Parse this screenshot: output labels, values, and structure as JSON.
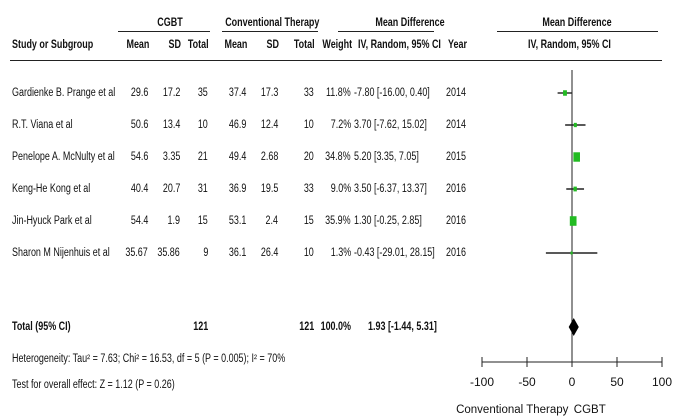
{
  "header": {
    "group_exp": "CGBT",
    "group_ctrl": "Conventional Therapy",
    "md_left": "Mean Difference",
    "md_right": "Mean Difference",
    "study_col": "Study or Subgroup",
    "mean": "Mean",
    "sd": "SD",
    "total": "Total",
    "weight": "Weight",
    "method": "IV, Random, 95% CI",
    "year": "Year",
    "method_right": "IV, Random, 95% CI"
  },
  "studies": [
    {
      "name": "Gardienke B. Prange et al",
      "exp_mean": "29.6",
      "exp_sd": "17.2",
      "exp_total": "35",
      "ctrl_mean": "37.4",
      "ctrl_sd": "17.3",
      "ctrl_total": "33",
      "weight": "11.8%",
      "ci_text": "-7.80 [-16.00, 0.40]",
      "year": "2014"
    },
    {
      "name": "R.T. Viana et al",
      "exp_mean": "50.6",
      "exp_sd": "13.4",
      "exp_total": "10",
      "ctrl_mean": "46.9",
      "ctrl_sd": "12.4",
      "ctrl_total": "10",
      "weight": "7.2%",
      "ci_text": "3.70 [-7.62, 15.02]",
      "year": "2014"
    },
    {
      "name": "Penelope A. McNulty et al",
      "exp_mean": "54.6",
      "exp_sd": "3.35",
      "exp_total": "21",
      "ctrl_mean": "49.4",
      "ctrl_sd": "2.68",
      "ctrl_total": "20",
      "weight": "34.8%",
      "ci_text": "5.20 [3.35, 7.05]",
      "year": "2015"
    },
    {
      "name": "Keng-He Kong et al",
      "exp_mean": "40.4",
      "exp_sd": "20.7",
      "exp_total": "31",
      "ctrl_mean": "36.9",
      "ctrl_sd": "19.5",
      "ctrl_total": "33",
      "weight": "9.0%",
      "ci_text": "3.50 [-6.37, 13.37]",
      "year": "2016"
    },
    {
      "name": "Jin-Hyuck Park et al",
      "exp_mean": "54.4",
      "exp_sd": "1.9",
      "exp_total": "15",
      "ctrl_mean": "53.1",
      "ctrl_sd": "2.4",
      "ctrl_total": "15",
      "weight": "35.9%",
      "ci_text": "1.30 [-0.25, 2.85]",
      "year": "2016"
    },
    {
      "name": "Sharon M Nijenhuis et al",
      "exp_mean": "35.67",
      "exp_sd": "35.86",
      "exp_total": "9",
      "ctrl_mean": "36.1",
      "ctrl_sd": "26.4",
      "ctrl_total": "10",
      "weight": "1.3%",
      "ci_text": "-0.43 [-29.01, 28.15]",
      "year": "2016"
    }
  ],
  "total": {
    "label": "Total (95% CI)",
    "exp_total": "121",
    "ctrl_total": "121",
    "weight": "100.0%",
    "ci_text": "1.93 [-1.44, 5.31]"
  },
  "footer": {
    "heterogeneity": "Heterogeneity: Tau² = 7.63; Chi² = 16.53, df = 5 (P = 0.005); I² = 70%",
    "overall": "Test for overall effect: Z = 1.12 (P = 0.26)",
    "favours_left": "Conventional Therapy",
    "favours_right": "CGBT"
  },
  "chart_data": {
    "type": "forest",
    "xlim": [
      -100,
      100
    ],
    "xticks": [
      -100,
      -50,
      0,
      50,
      100
    ],
    "tick_labels": [
      "-100",
      "-50",
      "0",
      "50",
      "100"
    ],
    "null_value": 0,
    "marker_color": "#22bb22",
    "series": [
      {
        "study": "Gardienke B. Prange et al",
        "estimate": -7.8,
        "lower": -16.0,
        "upper": 0.4,
        "weight": 11.8
      },
      {
        "study": "R.T. Viana et al",
        "estimate": 3.7,
        "lower": -7.62,
        "upper": 15.02,
        "weight": 7.2
      },
      {
        "study": "Penelope A. McNulty et al",
        "estimate": 5.2,
        "lower": 3.35,
        "upper": 7.05,
        "weight": 34.8
      },
      {
        "study": "Keng-He Kong et al",
        "estimate": 3.5,
        "lower": -6.37,
        "upper": 13.37,
        "weight": 9.0
      },
      {
        "study": "Jin-Hyuck Park et al",
        "estimate": 1.3,
        "lower": -0.25,
        "upper": 2.85,
        "weight": 35.9
      },
      {
        "study": "Sharon M Nijenhuis et al",
        "estimate": -0.43,
        "lower": -29.01,
        "upper": 28.15,
        "weight": 1.3
      }
    ],
    "pooled": {
      "estimate": 1.93,
      "lower": -1.44,
      "upper": 5.31
    }
  }
}
